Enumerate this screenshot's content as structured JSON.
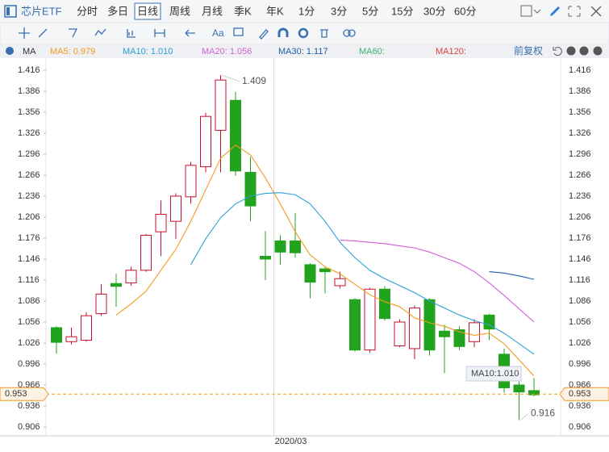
{
  "toolbar": {
    "symbol": "芯片ETF",
    "tabs": [
      "分时",
      "多日",
      "日线",
      "周线",
      "月线",
      "季K",
      "年K",
      "1分",
      "3分",
      "5分",
      "15分",
      "30分",
      "60分"
    ],
    "selected": 2
  },
  "tools": {
    "text_tool": "Aa"
  },
  "ma_bar": {
    "label": "MA",
    "items": [
      "MA5: 0.979",
      "MA10: 1.010",
      "MA20: 1.056",
      "MA30: 1.117",
      "MA60:",
      "MA120:"
    ],
    "colors": [
      "#f39a1e",
      "#2aa0d8",
      "#d45fd4",
      "#1e5fa8",
      "#3cb371",
      "#e04040"
    ],
    "adjust": "前复权"
  },
  "chart_data": {
    "type": "candlestick",
    "categories": [
      null,
      null,
      null,
      null,
      null,
      null,
      null,
      null,
      null,
      null,
      null,
      null,
      null,
      null,
      null,
      "2020/03",
      null,
      null,
      null,
      null,
      null,
      null,
      null,
      null,
      null,
      null,
      null,
      null,
      null,
      null,
      null,
      null,
      null
    ],
    "open": [
      1.048,
      1.028,
      1.03,
      1.068,
      1.111,
      1.112,
      1.13,
      1.185,
      1.2,
      1.235,
      1.278,
      1.33,
      1.373,
      1.27,
      1.15,
      1.172,
      1.172,
      1.138,
      1.132,
      1.108,
      1.088,
      1.016,
      1.103,
      1.022,
      1.018,
      1.088,
      1.043,
      1.045,
      1.028,
      1.066,
      1.01,
      0.966,
      0.958
    ],
    "high": [
      1.05,
      1.048,
      1.07,
      1.11,
      1.125,
      1.135,
      1.182,
      1.23,
      1.24,
      1.285,
      1.355,
      1.409,
      1.385,
      1.292,
      1.186,
      1.18,
      1.212,
      1.14,
      1.135,
      1.128,
      1.09,
      1.105,
      1.107,
      1.06,
      1.08,
      1.09,
      1.052,
      1.05,
      1.06,
      1.068,
      1.018,
      0.971,
      0.976
    ],
    "low": [
      1.011,
      1.024,
      1.028,
      1.065,
      1.078,
      1.108,
      1.128,
      1.15,
      1.175,
      1.225,
      1.27,
      1.27,
      1.265,
      1.2,
      1.116,
      1.138,
      1.148,
      1.09,
      1.097,
      1.104,
      1.014,
      1.012,
      1.058,
      1.02,
      1.003,
      1.008,
      0.983,
      1.016,
      1.02,
      1.03,
      0.955,
      0.916,
      0.95
    ],
    "close": [
      1.027,
      1.035,
      1.065,
      1.096,
      1.107,
      1.13,
      1.18,
      1.21,
      1.236,
      1.28,
      1.35,
      1.402,
      1.272,
      1.222,
      1.146,
      1.156,
      1.155,
      1.113,
      1.128,
      1.118,
      1.016,
      1.103,
      1.061,
      1.056,
      1.076,
      1.016,
      1.035,
      1.021,
      1.055,
      1.046,
      0.962,
      0.956,
      0.952
    ],
    "up_color": "#c8102e",
    "down_color": "#22a31d",
    "series": [
      {
        "name": "MA5",
        "color": "#f39a1e",
        "values": [
          null,
          null,
          null,
          null,
          1.066,
          1.082,
          1.1,
          1.13,
          1.16,
          1.2,
          1.245,
          1.29,
          1.309,
          1.295,
          1.262,
          1.225,
          1.185,
          1.152,
          1.135,
          1.125,
          1.11,
          1.095,
          1.085,
          1.078,
          1.062,
          1.055,
          1.05,
          1.042,
          1.037,
          1.04,
          1.025,
          1.002,
          0.979
        ]
      },
      {
        "name": "MA10",
        "color": "#2aa0d8",
        "values": [
          null,
          null,
          null,
          null,
          null,
          null,
          null,
          null,
          null,
          1.138,
          1.175,
          1.205,
          1.225,
          1.236,
          1.24,
          1.241,
          1.238,
          1.225,
          1.2,
          1.17,
          1.148,
          1.13,
          1.118,
          1.108,
          1.098,
          1.086,
          1.076,
          1.066,
          1.058,
          1.052,
          1.04,
          1.025,
          1.01
        ]
      },
      {
        "name": "MA20",
        "color": "#d45fd4",
        "values": [
          null,
          null,
          null,
          null,
          null,
          null,
          null,
          null,
          null,
          null,
          null,
          null,
          null,
          null,
          null,
          null,
          null,
          null,
          null,
          1.173,
          1.172,
          1.17,
          1.168,
          1.165,
          1.162,
          1.156,
          1.148,
          1.14,
          1.128,
          1.112,
          1.094,
          1.075,
          1.056
        ]
      },
      {
        "name": "MA30",
        "color": "#1e5fa8",
        "values": [
          null,
          null,
          null,
          null,
          null,
          null,
          null,
          null,
          null,
          null,
          null,
          null,
          null,
          null,
          null,
          null,
          null,
          null,
          null,
          null,
          null,
          null,
          null,
          null,
          null,
          null,
          null,
          null,
          null,
          1.128,
          1.126,
          1.122,
          1.117
        ]
      }
    ],
    "ylim": [
      0.8933,
      1.4333
    ],
    "yticks": [
      1.416,
      1.386,
      1.356,
      1.326,
      1.296,
      1.266,
      1.236,
      1.206,
      1.176,
      1.146,
      1.116,
      1.086,
      1.056,
      1.026,
      0.996,
      0.966,
      0.936,
      0.906
    ],
    "last_price": 0.953,
    "last_color": "#f39a1e",
    "high_label": 1.409,
    "low_label": 0.916,
    "tooltip": "MA10:1.010"
  }
}
